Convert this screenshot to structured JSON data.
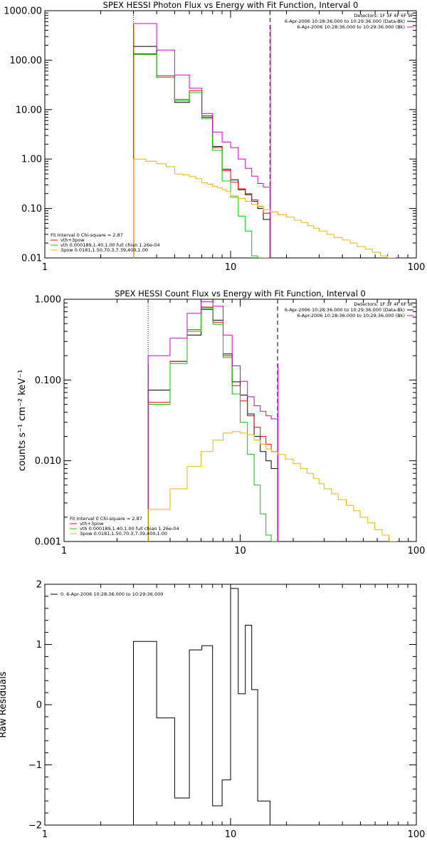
{
  "chart_data": [
    {
      "type": "line",
      "title": "SPEX HESSI Photon Flux vs Energy with Fit Function, Interval 0",
      "xlabel": "",
      "ylabel": "",
      "xscale": "log",
      "yscale": "log",
      "xlim": [
        1,
        100
      ],
      "ylim": [
        0.01,
        1000
      ],
      "x_ticks": [
        1,
        10,
        100
      ],
      "x_tick_labels": [
        "1",
        "10",
        "100"
      ],
      "y_ticks": [
        0.01,
        0.1,
        1,
        10,
        100,
        1000
      ],
      "y_tick_labels": [
        "0.01",
        "0.10",
        "1.00",
        "10.00",
        "100.00",
        "1000.00"
      ],
      "vlines": [
        {
          "x": 3.0,
          "style": "dotted",
          "color": "#000000"
        },
        {
          "x": 3.0,
          "style": "solid",
          "color": "#ff9900"
        },
        {
          "x": 16.3,
          "style": "dashed",
          "color": "#000000"
        },
        {
          "x": 16.3,
          "style": "solid",
          "color": "#d400d4"
        }
      ],
      "info_right": {
        "detectors": "Detectors: 1F 3F 4F 6F 9F",
        "lines": [
          {
            "text": "6-Apr-2006 10:28:36.000 to 10:29:36.000 (Data-Bk)",
            "color": "#000000"
          },
          {
            "text": "6-Apr-2006 10:28:36.000 to 10:29:36.000 (Bk)",
            "color": "#d400d4"
          }
        ]
      },
      "legend_left": {
        "header": "Fit Interval 0   Chi-square = 2.87",
        "entries": [
          {
            "text": "vth+3pow",
            "color": "#ff0000"
          },
          {
            "text": "vth 0.000189,1.40,1.00  full chian 1.26e-04",
            "color": "#00cc00"
          },
          {
            "text": "3pow 0.0181,1.50,70.3,7.39,400,1.00",
            "color": "#e6b800"
          }
        ]
      },
      "series": [
        {
          "color": "#000000",
          "edges": [
            3.0,
            3.5,
            4.0,
            4.5,
            5.0,
            5.5,
            6.0,
            6.5,
            7.0,
            7.5,
            8.0,
            8.5,
            9.0,
            9.5,
            10.0,
            11.0,
            12.0,
            13.0,
            14.0,
            15.0,
            16.3
          ],
          "values": [
            190,
            190,
            45,
            45,
            14,
            14,
            22,
            22,
            7,
            7,
            1.8,
            1.8,
            0.62,
            0.62,
            0.38,
            0.24,
            0.19,
            0.14,
            0.1,
            0.06
          ]
        },
        {
          "color": "#ff0000",
          "edges": [
            3.0,
            3.5,
            4.0,
            4.5,
            5.0,
            5.5,
            6.0,
            6.5,
            7.0,
            7.5,
            8.0,
            8.5,
            9.0,
            9.5,
            10.0,
            11.0,
            12.0,
            13.0,
            14.0,
            15.0,
            16.3
          ],
          "values": [
            135,
            135,
            48,
            48,
            16,
            16,
            24,
            24,
            7.5,
            7.5,
            1.7,
            1.7,
            0.58,
            0.58,
            0.34,
            0.25,
            0.2,
            0.15,
            0.11,
            0.08
          ]
        },
        {
          "color": "#00cc00",
          "edges": [
            3.0,
            3.5,
            4.0,
            4.5,
            5.0,
            5.5,
            6.0,
            6.5,
            7.0,
            7.5,
            8.0,
            8.5,
            9.0,
            9.5,
            10.0,
            11.0,
            12.0,
            13.0,
            14.0,
            15.0,
            16.3
          ],
          "values": [
            130,
            130,
            45,
            45,
            15,
            15,
            22,
            22,
            6.5,
            6.5,
            1.5,
            1.5,
            0.36,
            0.36,
            0.17,
            0.07,
            0.035,
            0.011,
            0.01,
            0.01
          ]
        },
        {
          "color": "#d400d4",
          "edges": [
            3.0,
            3.5,
            4.0,
            4.5,
            5.0,
            5.5,
            6.0,
            6.5,
            7.0,
            7.5,
            8.0,
            8.5,
            9.0,
            9.5,
            10.0,
            11.0,
            12.0,
            13.0,
            14.0,
            15.0,
            16.3
          ],
          "values": [
            550,
            550,
            160,
            160,
            50,
            50,
            27,
            27,
            8.3,
            8.3,
            3.5,
            3.5,
            2.2,
            2.2,
            1.7,
            1.0,
            0.65,
            0.45,
            0.32,
            0.27
          ]
        },
        {
          "color": "#e6b800",
          "edges": [
            3.0,
            3.5,
            4.0,
            4.5,
            5.0,
            5.5,
            6.0,
            6.5,
            7.0,
            7.5,
            8.0,
            8.5,
            9.0,
            9.5,
            10.0,
            11.0,
            12.0,
            13.0,
            14.0,
            15.0,
            16.3,
            18,
            20,
            22,
            24,
            26,
            28,
            30,
            33,
            36,
            40,
            44,
            48,
            53,
            58,
            64,
            70,
            77
          ],
          "values": [
            1.0,
            0.9,
            0.8,
            0.7,
            0.5,
            0.48,
            0.44,
            0.4,
            0.33,
            0.31,
            0.28,
            0.26,
            0.24,
            0.22,
            0.18,
            0.16,
            0.14,
            0.12,
            0.11,
            0.095,
            0.085,
            0.075,
            0.067,
            0.058,
            0.052,
            0.045,
            0.04,
            0.035,
            0.03,
            0.026,
            0.023,
            0.02,
            0.017,
            0.015,
            0.013,
            0.011,
            0.01
          ]
        }
      ]
    },
    {
      "type": "line",
      "title": "SPEX HESSI Count Flux vs Energy with Fit Function, Interval 0",
      "xlabel": "",
      "ylabel": "counts s⁻¹ cm⁻² keV⁻¹",
      "xscale": "log",
      "yscale": "log",
      "xlim": [
        1,
        100
      ],
      "ylim": [
        0.001,
        1
      ],
      "x_ticks": [
        1,
        10,
        100
      ],
      "x_tick_labels": [
        "1",
        "10",
        "100"
      ],
      "y_ticks": [
        0.001,
        0.01,
        0.1,
        1
      ],
      "y_tick_labels": [
        "0.001",
        "0.010",
        "0.100",
        "1.000"
      ],
      "vlines": [
        {
          "x": 3.0,
          "style": "dotted",
          "color": "#000000"
        },
        {
          "x": 3.0,
          "style": "solid",
          "color": "#00cc00"
        },
        {
          "x": 16.3,
          "style": "dashed",
          "color": "#000000"
        },
        {
          "x": 16.3,
          "style": "solid",
          "color": "#d400d4"
        }
      ],
      "info_right": {
        "detectors": "Detectors: 1F 3F 4F 6F 9F",
        "lines": [
          {
            "text": "6-Apr-2006 10:28:36.000 to 10:29:36.000 (Data-Bk)",
            "color": "#000000"
          },
          {
            "text": "6-Apr-2006 10:28:36.000 to 10:29:36.000 (Bk)",
            "color": "#d400d4"
          }
        ]
      },
      "legend_left": {
        "header": "Fit Interval 0   Chi-square = 2.87",
        "entries": [
          {
            "text": "vth+3pow",
            "color": "#ff0000"
          },
          {
            "text": "vth 0.000189,1.40,1.00  full chian 1.26e-04",
            "color": "#00cc00"
          },
          {
            "text": "3pow 0.0181,1.50,70.3,7.39,400,1.00",
            "color": "#e6b800"
          }
        ]
      },
      "series": [
        {
          "color": "#000000",
          "edges": [
            3.0,
            3.5,
            4.0,
            4.5,
            5.0,
            5.5,
            6.0,
            6.5,
            7.0,
            7.5,
            8.0,
            8.5,
            9.0,
            9.5,
            10.0,
            11.0,
            12.0,
            13.0,
            14.0,
            15.0,
            16.3
          ],
          "values": [
            0.075,
            0.075,
            0.17,
            0.17,
            0.36,
            0.36,
            0.75,
            0.75,
            0.55,
            0.55,
            0.21,
            0.21,
            0.095,
            0.095,
            0.065,
            0.038,
            0.02,
            0.013,
            0.01,
            0.008
          ]
        },
        {
          "color": "#ff0000",
          "edges": [
            3.0,
            3.5,
            4.0,
            4.5,
            5.0,
            5.5,
            6.0,
            6.5,
            7.0,
            7.5,
            8.0,
            8.5,
            9.0,
            9.5,
            10.0,
            11.0,
            12.0,
            13.0,
            14.0,
            15.0,
            16.3
          ],
          "values": [
            0.053,
            0.053,
            0.17,
            0.17,
            0.42,
            0.42,
            0.8,
            0.8,
            0.52,
            0.52,
            0.2,
            0.2,
            0.085,
            0.085,
            0.055,
            0.036,
            0.026,
            0.02,
            0.016,
            0.013
          ]
        },
        {
          "color": "#00cc00",
          "edges": [
            3.0,
            3.5,
            4.0,
            4.5,
            5.0,
            5.5,
            6.0,
            6.5,
            7.0,
            7.5,
            8.0,
            8.5,
            9.0,
            9.5,
            10.0,
            11.0,
            12.0,
            13.0,
            14.0,
            15.0,
            16.3
          ],
          "values": [
            0.05,
            0.05,
            0.16,
            0.16,
            0.4,
            0.4,
            0.78,
            0.78,
            0.49,
            0.49,
            0.19,
            0.19,
            0.067,
            0.067,
            0.03,
            0.012,
            0.005,
            0.0022,
            0.0012,
            0.001
          ]
        },
        {
          "color": "#d400d4",
          "edges": [
            3.0,
            3.5,
            4.0,
            4.5,
            5.0,
            5.5,
            6.0,
            6.5,
            7.0,
            7.5,
            8.0,
            8.5,
            9.0,
            9.5,
            10.0,
            11.0,
            12.0,
            13.0,
            14.0,
            15.0,
            16.3
          ],
          "values": [
            0.2,
            0.2,
            0.33,
            0.33,
            0.67,
            0.67,
            0.93,
            0.93,
            0.82,
            0.82,
            0.36,
            0.36,
            0.15,
            0.15,
            0.096,
            0.062,
            0.048,
            0.041,
            0.036,
            0.033
          ]
        },
        {
          "color": "#e6b800",
          "edges": [
            3.0,
            3.5,
            4.0,
            4.5,
            5.0,
            5.5,
            6.0,
            6.5,
            7.0,
            7.5,
            8.0,
            8.5,
            9.0,
            9.5,
            10.0,
            11.0,
            12.0,
            13.0,
            14.0,
            15.0,
            16.3,
            18,
            20,
            22,
            24,
            26,
            28,
            30,
            33,
            36,
            40,
            44,
            48,
            53,
            58,
            64,
            70,
            77
          ],
          "values": [
            0.0025,
            0.0025,
            0.0045,
            0.0045,
            0.0085,
            0.0085,
            0.013,
            0.013,
            0.018,
            0.018,
            0.022,
            0.022,
            0.023,
            0.023,
            0.022,
            0.021,
            0.018,
            0.016,
            0.014,
            0.013,
            0.012,
            0.0105,
            0.0092,
            0.008,
            0.007,
            0.006,
            0.0052,
            0.0045,
            0.0039,
            0.0033,
            0.0028,
            0.0024,
            0.002,
            0.0017,
            0.0014,
            0.0012,
            0.001
          ]
        }
      ]
    },
    {
      "type": "line",
      "title": "",
      "xlabel": "",
      "ylabel": "Raw Residuals",
      "xscale": "log",
      "yscale": "linear",
      "xlim": [
        1,
        100
      ],
      "ylim": [
        -2,
        2
      ],
      "x_ticks": [
        1,
        10,
        100
      ],
      "x_tick_labels": [
        "1",
        "10",
        "100"
      ],
      "y_ticks": [
        -2,
        -1,
        0,
        1,
        2
      ],
      "y_tick_labels": [
        "−2",
        "−1",
        "0",
        "1",
        "2"
      ],
      "vlines": [],
      "legend_left": {
        "header": "",
        "entries": [
          {
            "text": "0. 6-Apr-2006 10:28:36.000 to 10:29:36.000",
            "color": "#000000"
          }
        ]
      },
      "series": [
        {
          "color": "#000000",
          "edges": [
            3.0,
            3.5,
            4.0,
            4.5,
            5.0,
            5.5,
            6.0,
            6.5,
            7.0,
            7.5,
            8.0,
            8.5,
            9.0,
            9.5,
            10.0,
            11.0,
            12.0,
            13.0,
            14.0,
            15.0,
            16.3
          ],
          "values": [
            1.05,
            1.05,
            -0.22,
            -0.22,
            -1.55,
            -1.55,
            0.91,
            0.91,
            0.98,
            0.98,
            -1.68,
            -1.68,
            -1.25,
            -1.25,
            1.93,
            0.18,
            1.32,
            0.25,
            -1.6,
            -1.6
          ]
        }
      ]
    }
  ]
}
